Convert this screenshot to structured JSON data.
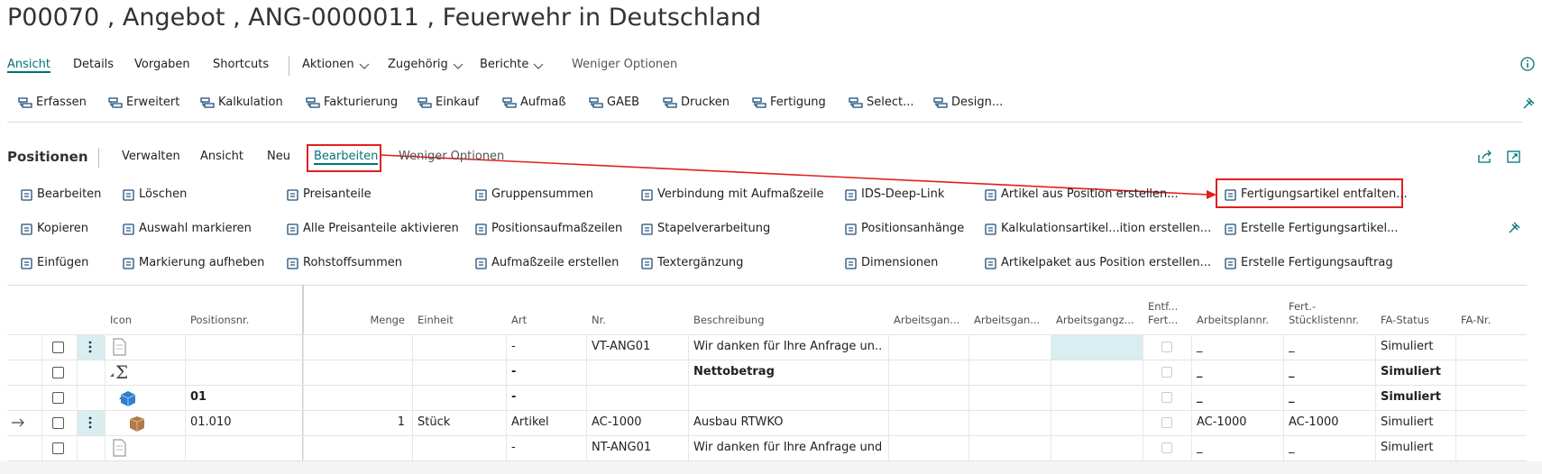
{
  "header": {
    "title": "P00070 , Angebot , ANG-0000011 , Feuerwehr in Deutschland"
  },
  "nav": {
    "tabs": [
      "Ansicht",
      "Details",
      "Vorgaben",
      "Shortcuts"
    ],
    "menus": [
      "Aktionen",
      "Zugehörig",
      "Berichte"
    ],
    "less_options": "Weniger Optionen"
  },
  "toolbar": {
    "items": [
      "Erfassen",
      "Erweitert",
      "Kalkulation",
      "Fakturierung",
      "Einkauf",
      "Aufmaß",
      "GAEB",
      "Drucken",
      "Fertigung",
      "Select...",
      "Design..."
    ]
  },
  "positions": {
    "title": "Positionen",
    "tabs": [
      "Verwalten",
      "Ansicht",
      "Neu",
      "Bearbeiten"
    ],
    "less_options": "Weniger Optionen",
    "actions": [
      [
        "Bearbeiten",
        "Kopieren",
        "Einfügen"
      ],
      [
        "Löschen",
        "Auswahl markieren",
        "Markierung aufheben"
      ],
      [
        "Preisanteile",
        "Alle Preisanteile aktivieren",
        "Rohstoffsummen"
      ],
      [
        "Gruppensummen",
        "Positionsaufmaßzeilen",
        "Aufmaßzeile erstellen"
      ],
      [
        "Verbindung mit Aufmaßzeile",
        "Stapelverarbeitung",
        "Textergänzung"
      ],
      [
        "IDS-Deep-Link",
        "Positionsanhänge",
        "Dimensionen"
      ],
      [
        "Artikel aus Position erstellen...",
        "Kalkulationsartikel...ition erstellen...",
        "Artikelpaket aus Position erstellen..."
      ],
      [
        "Fertigungsartikel entfalten...",
        "Erstelle Fertigungsartikel...",
        "Erstelle Fertigungsauftrag"
      ]
    ]
  },
  "table": {
    "headers": [
      "Icon",
      "Positionsnr.",
      "Menge",
      "Einheit",
      "Art",
      "Nr.",
      "Beschreibung",
      "Arbeitsgan...",
      "Arbeitsgan...",
      "Arbeitsgangz...",
      "Entf...\nFert...",
      "Arbeitsplannr.",
      "Fert.-\nStücklistennr.",
      "FA-Status",
      "FA-Nr."
    ],
    "rows": [
      [
        null,
        null,
        null,
        "-",
        "VT-ANG01",
        "Wir danken für Ihre Anfrage un...",
        null,
        null,
        null,
        "_",
        "_",
        "Simuliert",
        null
      ],
      [
        null,
        null,
        null,
        "-",
        null,
        "Nettobetrag",
        null,
        null,
        null,
        "_",
        "_",
        "Simuliert",
        null
      ],
      [
        "01",
        null,
        null,
        "-",
        null,
        null,
        null,
        null,
        null,
        "_",
        "_",
        "Simuliert",
        null
      ],
      [
        "01.010",
        1,
        "Stück",
        "Artikel",
        "AC-1000",
        "Ausbau RTWKO",
        null,
        null,
        null,
        "AC-1000",
        "AC-1000",
        "Simuliert",
        null
      ],
      [
        null,
        null,
        null,
        "-",
        "NT-ANG01",
        "Wir danken für Ihre Anfrage und...",
        null,
        null,
        null,
        "_",
        "_",
        "Simuliert",
        null
      ]
    ]
  }
}
